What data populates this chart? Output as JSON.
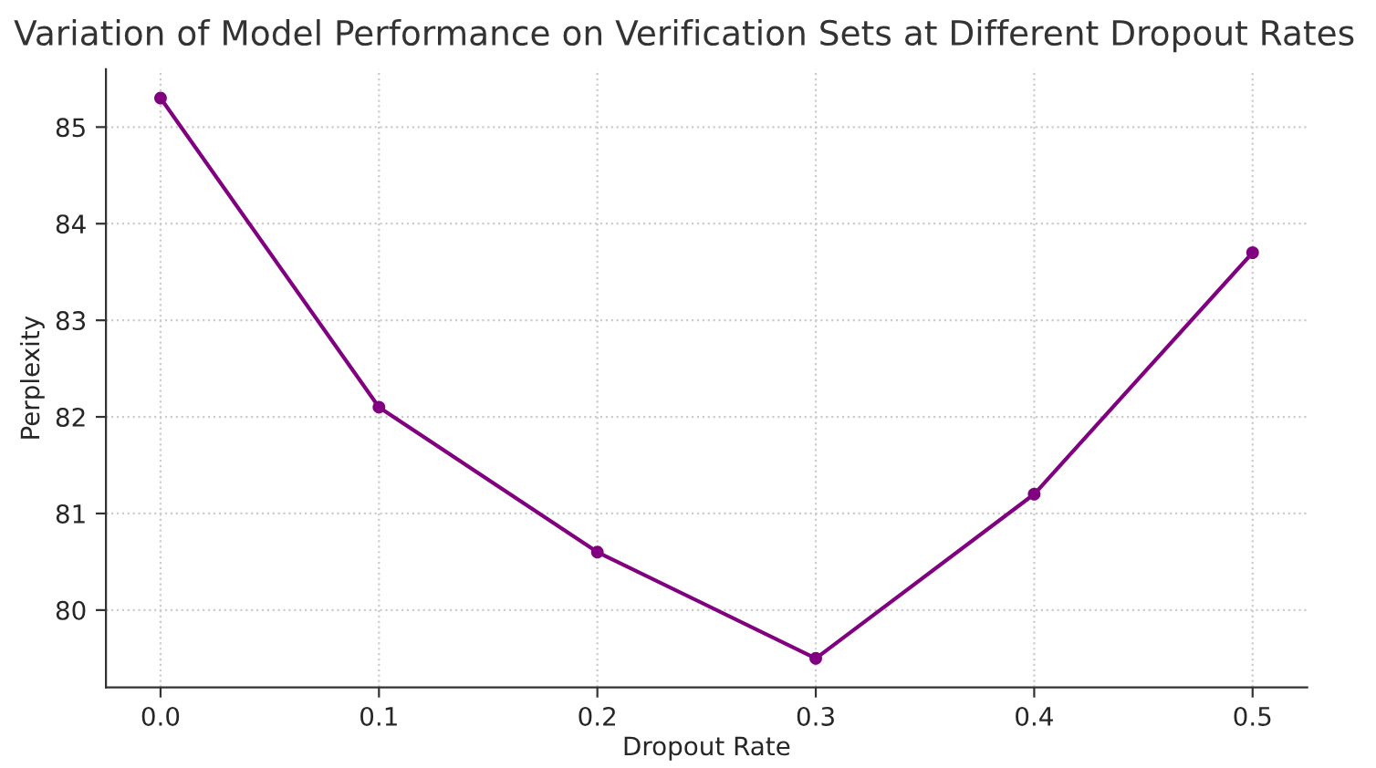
{
  "chart_data": {
    "type": "line",
    "title": "Variation of Model Performance on Verification Sets at Different Dropout Rates",
    "xlabel": "Dropout Rate",
    "ylabel": "Perplexity",
    "x": [
      0.0,
      0.1,
      0.2,
      0.3,
      0.4,
      0.5
    ],
    "series": [
      {
        "color": "#800080",
        "values": [
          85.3,
          82.1,
          80.6,
          79.5,
          81.2,
          83.7
        ]
      }
    ],
    "xlim": [
      -0.025,
      0.525
    ],
    "xticks": [
      {
        "value": 0.0,
        "label": "0.0"
      },
      {
        "value": 0.1,
        "label": "0.1"
      },
      {
        "value": 0.2,
        "label": "0.2"
      },
      {
        "value": 0.3,
        "label": "0.3"
      },
      {
        "value": 0.4,
        "label": "0.4"
      },
      {
        "value": 0.5,
        "label": "0.5"
      }
    ],
    "ylim": [
      79.2,
      85.6
    ],
    "yticks": [
      80,
      81,
      82,
      83,
      84,
      85
    ],
    "grid": true,
    "marker": "circle",
    "line_style": "solid"
  }
}
